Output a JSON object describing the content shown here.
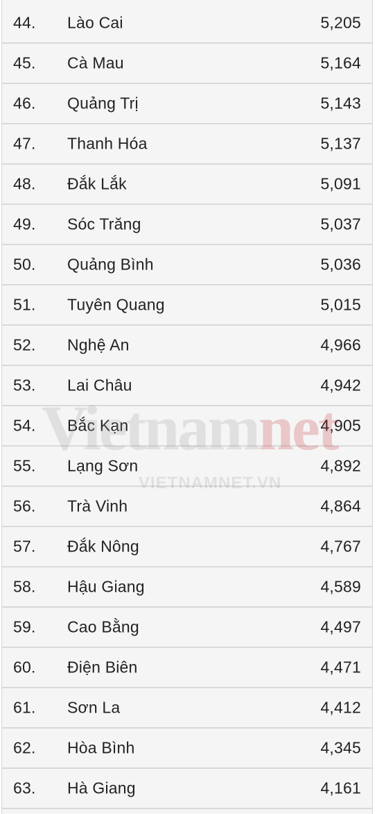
{
  "rows": [
    {
      "rank": "44.",
      "province": "Lào Cai",
      "score": "5,205"
    },
    {
      "rank": "45.",
      "province": "Cà Mau",
      "score": "5,164"
    },
    {
      "rank": "46.",
      "province": "Quảng Trị",
      "score": "5,143"
    },
    {
      "rank": "47.",
      "province": "Thanh Hóa",
      "score": "5,137"
    },
    {
      "rank": "48.",
      "province": "Đắk Lắk",
      "score": "5,091"
    },
    {
      "rank": "49.",
      "province": "Sóc Trăng",
      "score": "5,037"
    },
    {
      "rank": "50.",
      "province": "Quảng Bình",
      "score": "5,036"
    },
    {
      "rank": "51.",
      "province": "Tuyên Quang",
      "score": "5,015"
    },
    {
      "rank": "52.",
      "province": "Nghệ An",
      "score": "4,966"
    },
    {
      "rank": "53.",
      "province": "Lai Châu",
      "score": "4,942"
    },
    {
      "rank": "54.",
      "province": "Bắc Kạn",
      "score": "4,905"
    },
    {
      "rank": "55.",
      "province": "Lạng Sơn",
      "score": "4,892"
    },
    {
      "rank": "56.",
      "province": "Trà Vinh",
      "score": "4,864"
    },
    {
      "rank": "57.",
      "province": "Đắk Nông",
      "score": "4,767"
    },
    {
      "rank": "58.",
      "province": "Hậu Giang",
      "score": "4,589"
    },
    {
      "rank": "59.",
      "province": "Cao Bằng",
      "score": "4,497"
    },
    {
      "rank": "60.",
      "province": "Điện Biên",
      "score": "4,471"
    },
    {
      "rank": "61.",
      "province": "Sơn La",
      "score": "4,412"
    },
    {
      "rank": "62.",
      "province": "Hòa Bình",
      "score": "4,345"
    },
    {
      "rank": "63.",
      "province": "Hà Giang",
      "score": "4,161"
    }
  ],
  "watermark": {
    "logo_part1": "Vietnam",
    "logo_part2": "net",
    "url": "VIETNAMNET.VN"
  }
}
